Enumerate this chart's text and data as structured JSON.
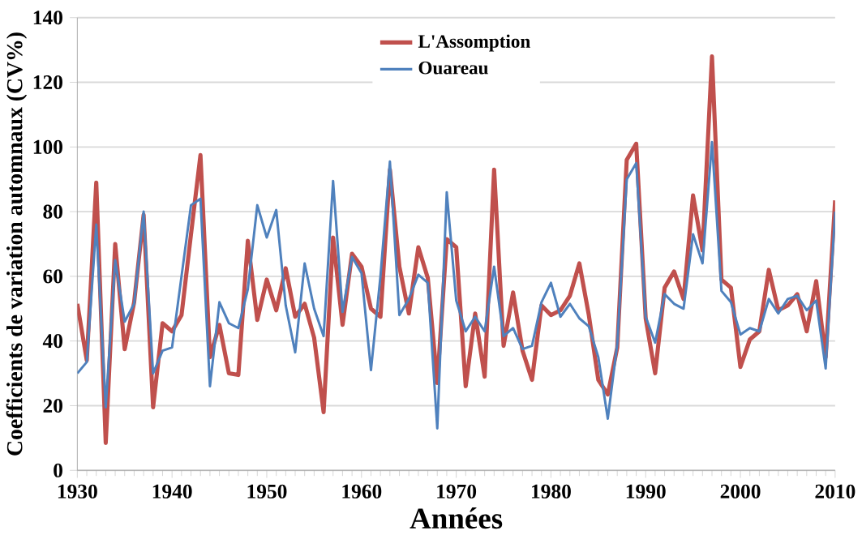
{
  "chart_data": {
    "type": "line",
    "xlabel": "Années",
    "ylabel": "Coefficients de variation automnaux (CV%)",
    "x": [
      1930,
      1931,
      1932,
      1933,
      1934,
      1935,
      1936,
      1937,
      1938,
      1939,
      1940,
      1941,
      1942,
      1943,
      1944,
      1945,
      1946,
      1947,
      1948,
      1949,
      1950,
      1951,
      1952,
      1953,
      1954,
      1955,
      1956,
      1957,
      1958,
      1959,
      1960,
      1961,
      1962,
      1963,
      1964,
      1965,
      1966,
      1967,
      1968,
      1969,
      1970,
      1971,
      1972,
      1973,
      1974,
      1975,
      1976,
      1977,
      1978,
      1979,
      1980,
      1981,
      1982,
      1983,
      1984,
      1985,
      1986,
      1987,
      1988,
      1989,
      1990,
      1991,
      1992,
      1993,
      1994,
      1995,
      1996,
      1997,
      1998,
      1999,
      2000,
      2001,
      2002,
      2003,
      2004,
      2005,
      2006,
      2007,
      2008,
      2009,
      2010
    ],
    "series": [
      {
        "name": "L'Assomption",
        "color": "#c0504d",
        "values": [
          51.5,
          34,
          89,
          8.5,
          70,
          37.5,
          52,
          79,
          19.5,
          45.5,
          43,
          48,
          73,
          97.5,
          35,
          45,
          30,
          29.5,
          71,
          46.5,
          59,
          49.5,
          62.5,
          47.5,
          51.5,
          41,
          18,
          72,
          45,
          67,
          63,
          50,
          47.5,
          93,
          63,
          48.5,
          69,
          59.5,
          27,
          71.5,
          69,
          26,
          48.5,
          29,
          93,
          38.5,
          55,
          37,
          28,
          51,
          48,
          49.5,
          54,
          64,
          48,
          28,
          23.5,
          38,
          96,
          101,
          47,
          30,
          56.5,
          61.5,
          53,
          85,
          68,
          128,
          59,
          56.5,
          32,
          40.5,
          43,
          62,
          49.5,
          51,
          54.5,
          43,
          58.5,
          35,
          83.5
        ]
      },
      {
        "name": "Ouareau",
        "color": "#4f81bd",
        "values": [
          30,
          33.5,
          76,
          19.5,
          65,
          46,
          51.5,
          80,
          30,
          37,
          38,
          60,
          82,
          84,
          26,
          52,
          45.5,
          44,
          56,
          82,
          72,
          80.5,
          51,
          36.5,
          64,
          50,
          41.5,
          89.5,
          49,
          66,
          61,
          31,
          60,
          95.5,
          48,
          53,
          60.5,
          58,
          13,
          86,
          52.5,
          43,
          47.5,
          43,
          63,
          41.5,
          44,
          37.5,
          38.5,
          52,
          58,
          47.5,
          51.5,
          47,
          44.5,
          35,
          16,
          39,
          90,
          95,
          47.5,
          39.5,
          54.5,
          51.5,
          50,
          73,
          64,
          101.5,
          55.5,
          52,
          42,
          44,
          43,
          53,
          48.5,
          53,
          54,
          49.5,
          52.5,
          31.5,
          80
        ]
      }
    ],
    "xlim": [
      1930,
      2010
    ],
    "ylim": [
      0,
      140
    ],
    "xticks": [
      1930,
      1940,
      1950,
      1960,
      1970,
      1980,
      1990,
      2000,
      2010
    ],
    "yticks": [
      0,
      20,
      40,
      60,
      80,
      100,
      120,
      140
    ],
    "grid": "y",
    "legend": "top",
    "marker": "none",
    "line_style": "solid"
  }
}
